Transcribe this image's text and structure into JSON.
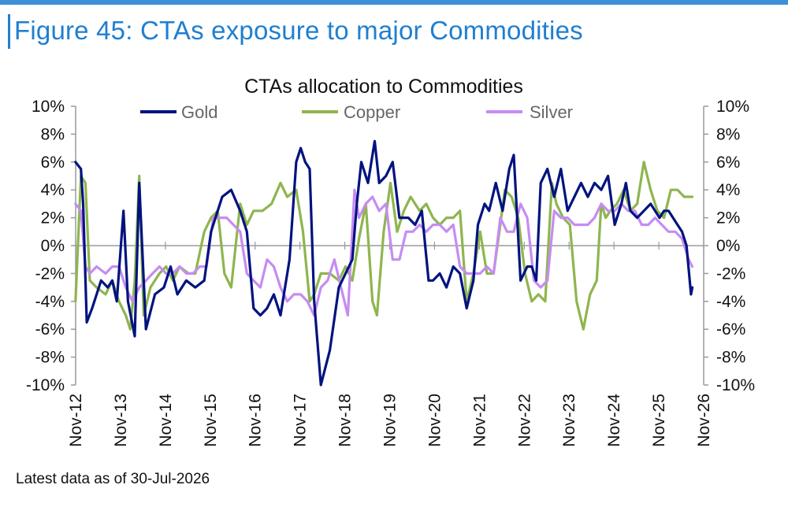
{
  "figure_title": "Figure 45: CTAs exposure to major Commodities",
  "footnote": "Latest data as of 30-Jul-2026",
  "colors": {
    "Gold": "#00137f",
    "Copper": "#8fb54f",
    "Silver": "#c68cf2",
    "title_accent": "#1f7fd0"
  },
  "chart_data": {
    "type": "line",
    "title": "CTAs allocation to Commodities",
    "xlabel": "",
    "ylabel": "",
    "ylim": [
      -10,
      10
    ],
    "yticks": [
      "-10%",
      "-8%",
      "-6%",
      "-4%",
      "-2%",
      "0%",
      "2%",
      "4%",
      "6%",
      "8%",
      "10%"
    ],
    "y2ticks": [
      "-10%",
      "-8%",
      "-6%",
      "-4%",
      "-2%",
      "0%",
      "2%",
      "4%",
      "6%",
      "8%",
      "10%"
    ],
    "x_start": 2012.833,
    "x_end": 2026.833,
    "xticks": [
      "Nov-12",
      "Nov-13",
      "Nov-14",
      "Nov-15",
      "Nov-16",
      "Nov-17",
      "Nov-18",
      "Nov-19",
      "Nov-20",
      "Nov-21",
      "Nov-22",
      "Nov-23",
      "Nov-24",
      "Nov-25",
      "Nov-26"
    ],
    "legend_position": "top",
    "grid": false,
    "series": [
      {
        "name": "Gold",
        "x": [
          2012.83,
          2012.95,
          2013.0,
          2013.08,
          2013.2,
          2013.4,
          2013.55,
          2013.65,
          2013.75,
          2013.9,
          2014.0,
          2014.15,
          2014.25,
          2014.4,
          2014.6,
          2014.8,
          2014.95,
          2015.1,
          2015.3,
          2015.5,
          2015.7,
          2015.85,
          2016.0,
          2016.1,
          2016.3,
          2016.5,
          2016.65,
          2016.8,
          2016.95,
          2017.1,
          2017.25,
          2017.4,
          2017.6,
          2017.75,
          2017.85,
          2017.95,
          2018.05,
          2018.15,
          2018.3,
          2018.5,
          2018.7,
          2018.85,
          2019.0,
          2019.1,
          2019.2,
          2019.35,
          2019.5,
          2019.6,
          2019.75,
          2019.9,
          2020.05,
          2020.25,
          2020.4,
          2020.55,
          2020.7,
          2020.8,
          2020.95,
          2021.1,
          2021.25,
          2021.4,
          2021.55,
          2021.7,
          2021.8,
          2021.95,
          2022.05,
          2022.2,
          2022.35,
          2022.5,
          2022.6,
          2022.75,
          2022.9,
          2023.0,
          2023.1,
          2023.2,
          2023.35,
          2023.5,
          2023.65,
          2023.8,
          2023.95,
          2024.1,
          2024.25,
          2024.4,
          2024.55,
          2024.7,
          2024.85,
          2025.0,
          2025.1,
          2025.2,
          2025.35,
          2025.5,
          2025.65,
          2025.75,
          2025.85,
          2025.95,
          2026.05,
          2026.15,
          2026.25,
          2026.35,
          2026.45,
          2026.55,
          2026.58
        ],
        "y": [
          6,
          5.5,
          3,
          -5.5,
          -4.5,
          -2.5,
          -3,
          -2.5,
          -4,
          2.5,
          -4,
          -6.5,
          4.5,
          -6,
          -3.5,
          -3,
          -1.5,
          -3.5,
          -2.5,
          -3,
          -2.5,
          1,
          2.5,
          3.5,
          4,
          2.5,
          1,
          -4.5,
          -5,
          -4.5,
          -3.5,
          -5,
          -1,
          6,
          7,
          6,
          5.5,
          -4,
          -10,
          -7.5,
          -3,
          -2,
          -1,
          3,
          6,
          4.5,
          7.5,
          4.5,
          5,
          6,
          2,
          2,
          1.5,
          2.5,
          -2.5,
          -2.5,
          -2,
          -3,
          -1.5,
          -2,
          -4.5,
          -2.5,
          1.5,
          3,
          2.5,
          4.5,
          2.5,
          5.5,
          6.5,
          -2.5,
          -1.5,
          -1.5,
          -2.5,
          4.5,
          5.5,
          3.5,
          5.5,
          2.5,
          3.5,
          4.5,
          3.5,
          4.5,
          4,
          5,
          1.5,
          3,
          4.5,
          2.5,
          2,
          2.5,
          3,
          2.5,
          2,
          2.5,
          2.5,
          2,
          1.5,
          1,
          0,
          -3.5,
          -3
        ]
      },
      {
        "name": "Copper",
        "x": [
          2012.83,
          2012.95,
          2013.05,
          2013.15,
          2013.3,
          2013.5,
          2013.65,
          2013.8,
          2013.95,
          2014.05,
          2014.15,
          2014.25,
          2014.35,
          2014.5,
          2014.7,
          2014.85,
          2015.0,
          2015.15,
          2015.35,
          2015.5,
          2015.7,
          2015.85,
          2016.0,
          2016.15,
          2016.3,
          2016.5,
          2016.65,
          2016.8,
          2017.0,
          2017.2,
          2017.4,
          2017.55,
          2017.75,
          2017.9,
          2018.05,
          2018.15,
          2018.3,
          2018.5,
          2018.7,
          2018.85,
          2019.0,
          2019.15,
          2019.3,
          2019.45,
          2019.55,
          2019.7,
          2019.85,
          2020.0,
          2020.15,
          2020.3,
          2020.5,
          2020.65,
          2020.8,
          2020.95,
          2021.1,
          2021.25,
          2021.4,
          2021.55,
          2021.7,
          2021.85,
          2022.0,
          2022.15,
          2022.3,
          2022.4,
          2022.55,
          2022.7,
          2022.85,
          2023.0,
          2023.15,
          2023.3,
          2023.45,
          2023.55,
          2023.7,
          2023.85,
          2024.0,
          2024.15,
          2024.3,
          2024.45,
          2024.55,
          2024.65,
          2024.75,
          2024.9,
          2025.05,
          2025.2,
          2025.35,
          2025.5,
          2025.65,
          2025.8,
          2025.95,
          2026.1,
          2026.25,
          2026.4,
          2026.55,
          2026.58
        ],
        "y": [
          -4,
          5,
          4.5,
          -2.5,
          -3,
          -3.5,
          -2.5,
          -4,
          -5,
          -6,
          -2.5,
          5,
          -5,
          -3,
          -2,
          -1.5,
          -2.5,
          -1.5,
          -2,
          -2,
          1,
          2,
          2.5,
          -2,
          -3,
          3,
          1.5,
          2.5,
          2.5,
          3,
          4.5,
          3.5,
          4,
          1,
          -4,
          -3.5,
          -2,
          -2,
          -2.5,
          -1.5,
          -2.5,
          0.5,
          3,
          -4,
          -5,
          1,
          4.5,
          1,
          2.5,
          3.5,
          2.5,
          3,
          2,
          1.5,
          2,
          2,
          2.5,
          -4,
          -2,
          1,
          -2,
          -2,
          1.5,
          4,
          3.5,
          2,
          -2,
          -4,
          -3.5,
          -4,
          4.5,
          3,
          2,
          1.5,
          -4,
          -6,
          -3.5,
          -2.5,
          3,
          2,
          2.5,
          3,
          4,
          2.5,
          3,
          6,
          4,
          2.5,
          2,
          4,
          4,
          3.5,
          3.5,
          3.5
        ]
      },
      {
        "name": "Silver",
        "x": [
          2012.83,
          2012.95,
          2013.05,
          2013.15,
          2013.3,
          2013.5,
          2013.65,
          2013.8,
          2013.95,
          2014.1,
          2014.25,
          2014.4,
          2014.55,
          2014.7,
          2014.85,
          2015.0,
          2015.15,
          2015.3,
          2015.45,
          2015.6,
          2015.75,
          2015.9,
          2016.05,
          2016.2,
          2016.35,
          2016.5,
          2016.65,
          2016.8,
          2016.95,
          2017.1,
          2017.25,
          2017.4,
          2017.55,
          2017.7,
          2017.85,
          2018.0,
          2018.15,
          2018.3,
          2018.45,
          2018.6,
          2018.75,
          2018.9,
          2019.05,
          2019.15,
          2019.3,
          2019.45,
          2019.6,
          2019.75,
          2019.9,
          2020.05,
          2020.2,
          2020.35,
          2020.5,
          2020.65,
          2020.8,
          2020.95,
          2021.1,
          2021.25,
          2021.4,
          2021.55,
          2021.7,
          2021.85,
          2022.0,
          2022.15,
          2022.3,
          2022.45,
          2022.6,
          2022.75,
          2022.9,
          2023.05,
          2023.2,
          2023.35,
          2023.5,
          2023.65,
          2023.8,
          2023.95,
          2024.1,
          2024.25,
          2024.4,
          2024.55,
          2024.7,
          2024.85,
          2025.0,
          2025.15,
          2025.3,
          2025.45,
          2025.6,
          2025.75,
          2025.9,
          2026.05,
          2026.2,
          2026.35,
          2026.5,
          2026.58
        ],
        "y": [
          3,
          2.5,
          -1.5,
          -2,
          -1.5,
          -2,
          -1.5,
          -1.5,
          -3,
          -4,
          -3,
          -2.5,
          -2,
          -1.5,
          -2,
          -2,
          -1.5,
          -2,
          -2,
          -1.5,
          -1.5,
          2,
          2,
          2,
          1.5,
          1,
          -2,
          -2.5,
          -3,
          -1,
          -1.5,
          -3,
          -4,
          -3.5,
          -3.5,
          -4,
          -5,
          -3,
          -2.5,
          -1,
          -3,
          -5,
          4,
          2,
          3,
          3.5,
          2.5,
          3,
          -1,
          -1,
          1,
          1,
          1.5,
          1,
          1.5,
          1.5,
          1,
          1.5,
          -1.5,
          -2,
          -2,
          -2,
          -1.5,
          -2,
          2,
          1,
          1,
          3,
          2,
          -2.5,
          -3,
          -2.5,
          2.5,
          2,
          2,
          1.5,
          1.5,
          1.5,
          2,
          3,
          2.5,
          2.5,
          3,
          2.5,
          2.5,
          1.5,
          1.5,
          2,
          1.5,
          1,
          1,
          0.5,
          -1,
          -1.5
        ]
      }
    ]
  }
}
